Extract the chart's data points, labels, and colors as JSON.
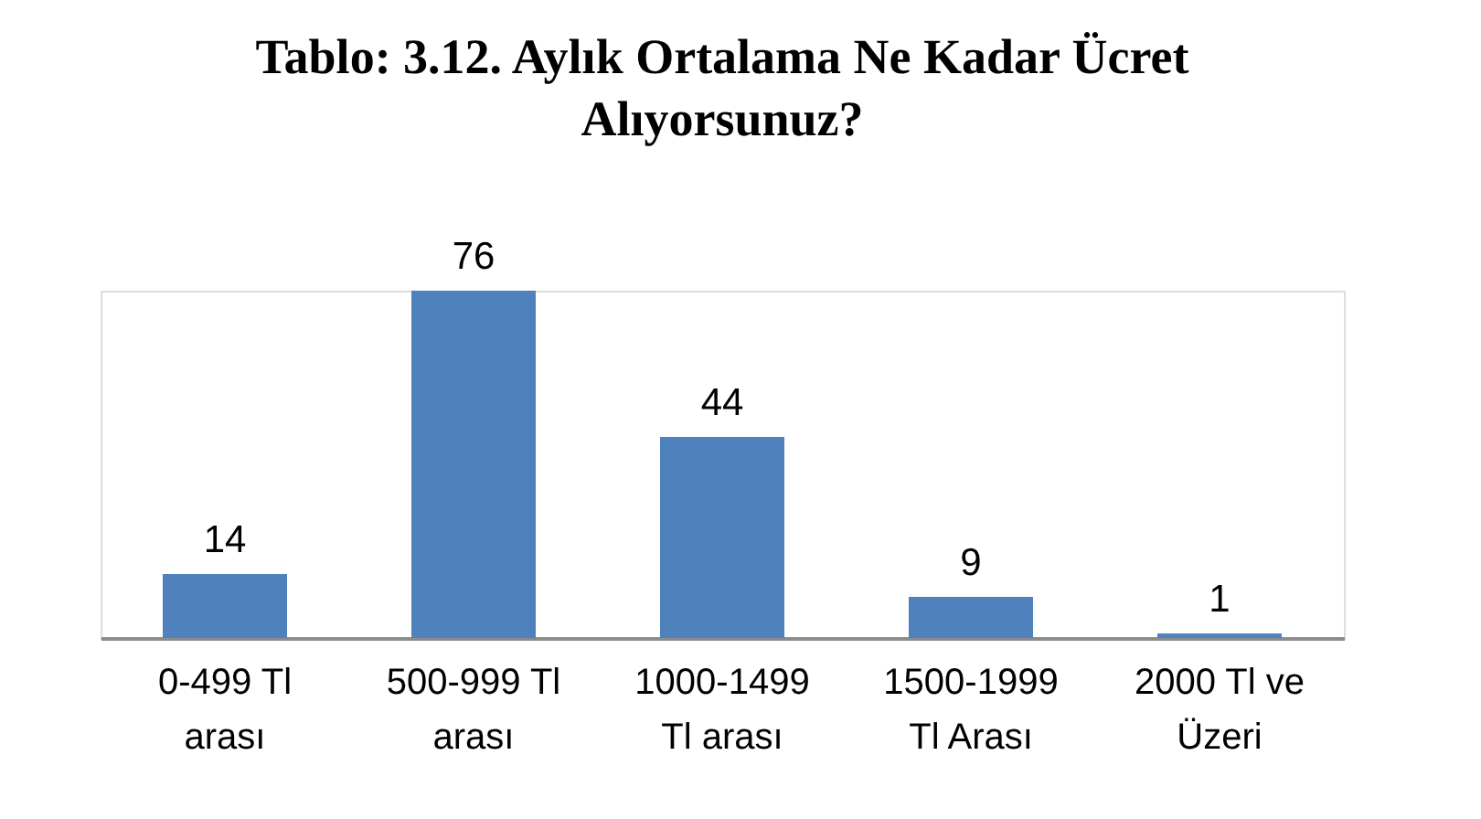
{
  "chart_data": {
    "type": "bar",
    "title": "Tablo: 3.12. Aylık Ortalama Ne Kadar Ücret\nAlıyorsunuz?",
    "categories": [
      "0-499 Tl\narası",
      "500-999 Tl\narası",
      "1000-1499\nTl arası",
      "1500-1999\nTl Arası",
      "2000 Tl ve\nÜzeri"
    ],
    "values": [
      14,
      76,
      44,
      9,
      1
    ],
    "color": "#4f81bd",
    "data_labels": true,
    "tick_labels": "x"
  }
}
